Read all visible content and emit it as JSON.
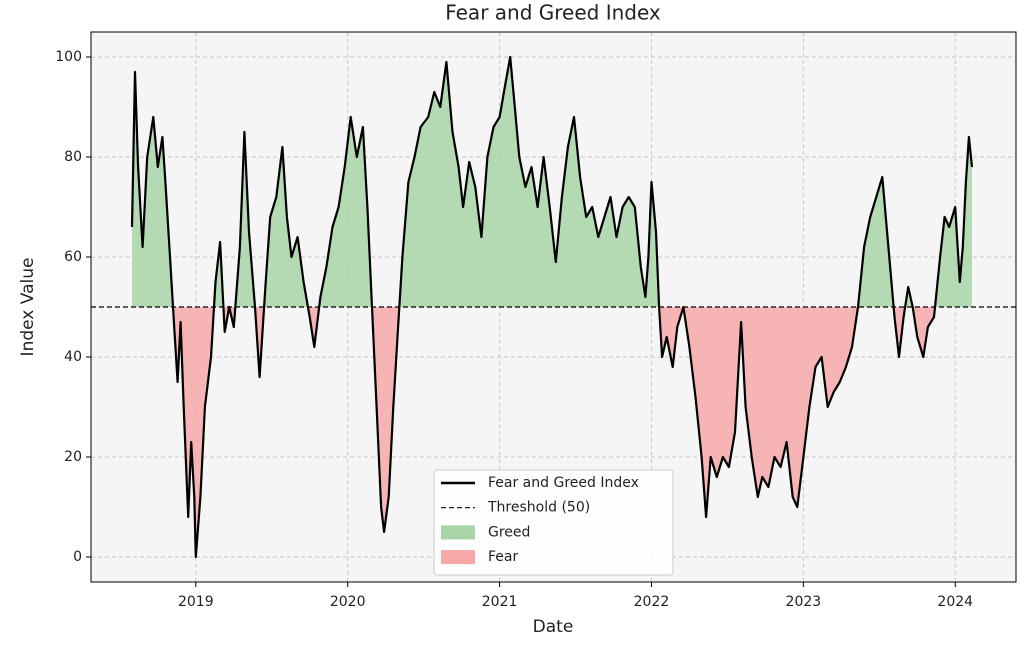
{
  "chart_data": {
    "type": "line",
    "title": "Fear and Greed Index",
    "xlabel": "Date",
    "ylabel": "Index Value",
    "x": [
      2018.58,
      2018.6,
      2018.62,
      2018.65,
      2018.68,
      2018.72,
      2018.75,
      2018.78,
      2018.8,
      2018.83,
      2018.86,
      2018.88,
      2018.9,
      2018.92,
      2018.95,
      2018.97,
      2018.99,
      2019.0,
      2019.03,
      2019.06,
      2019.1,
      2019.13,
      2019.16,
      2019.19,
      2019.22,
      2019.25,
      2019.29,
      2019.32,
      2019.35,
      2019.39,
      2019.42,
      2019.46,
      2019.49,
      2019.53,
      2019.57,
      2019.6,
      2019.63,
      2019.67,
      2019.71,
      2019.75,
      2019.78,
      2019.82,
      2019.86,
      2019.9,
      2019.94,
      2019.98,
      2020.02,
      2020.06,
      2020.1,
      2020.13,
      2020.16,
      2020.19,
      2020.22,
      2020.24,
      2020.27,
      2020.3,
      2020.33,
      2020.36,
      2020.4,
      2020.44,
      2020.48,
      2020.53,
      2020.57,
      2020.61,
      2020.65,
      2020.69,
      2020.73,
      2020.76,
      2020.8,
      2020.84,
      2020.88,
      2020.92,
      2020.96,
      2021.0,
      2021.04,
      2021.07,
      2021.1,
      2021.13,
      2021.17,
      2021.21,
      2021.25,
      2021.29,
      2021.33,
      2021.37,
      2021.41,
      2021.45,
      2021.49,
      2021.53,
      2021.57,
      2021.61,
      2021.65,
      2021.69,
      2021.73,
      2021.77,
      2021.81,
      2021.85,
      2021.89,
      2021.93,
      2021.96,
      2021.98,
      2022.0,
      2022.03,
      2022.05,
      2022.07,
      2022.1,
      2022.14,
      2022.17,
      2022.21,
      2022.25,
      2022.29,
      2022.33,
      2022.36,
      2022.39,
      2022.43,
      2022.47,
      2022.51,
      2022.55,
      2022.59,
      2022.62,
      2022.66,
      2022.7,
      2022.73,
      2022.77,
      2022.81,
      2022.85,
      2022.89,
      2022.93,
      2022.96,
      2023.0,
      2023.04,
      2023.08,
      2023.12,
      2023.16,
      2023.2,
      2023.24,
      2023.28,
      2023.32,
      2023.36,
      2023.4,
      2023.44,
      2023.48,
      2023.52,
      2023.56,
      2023.6,
      2023.63,
      2023.66,
      2023.69,
      2023.72,
      2023.75,
      2023.79,
      2023.82,
      2023.86,
      2023.9,
      2023.93,
      2023.96,
      2024.0,
      2024.03,
      2024.05,
      2024.07,
      2024.09,
      2024.11
    ],
    "series": [
      {
        "name": "Fear and Greed Index",
        "color": "#000000",
        "values": [
          66,
          97,
          78,
          62,
          80,
          88,
          78,
          84,
          75,
          60,
          45,
          35,
          47,
          30,
          8,
          23,
          12,
          0,
          12,
          30,
          40,
          55,
          63,
          45,
          50,
          46,
          62,
          85,
          65,
          50,
          36,
          55,
          68,
          72,
          82,
          68,
          60,
          64,
          55,
          48,
          42,
          52,
          58,
          66,
          70,
          78,
          88,
          80,
          86,
          70,
          50,
          30,
          10,
          5,
          12,
          30,
          45,
          60,
          75,
          80,
          86,
          88,
          93,
          90,
          99,
          85,
          78,
          70,
          79,
          74,
          64,
          80,
          86,
          88,
          95,
          100,
          90,
          80,
          74,
          78,
          70,
          80,
          70,
          59,
          72,
          82,
          88,
          76,
          68,
          70,
          64,
          68,
          72,
          64,
          70,
          72,
          70,
          58,
          52,
          60,
          75,
          65,
          50,
          40,
          44,
          38,
          46,
          50,
          42,
          32,
          20,
          8,
          20,
          16,
          20,
          18,
          25,
          47,
          30,
          20,
          12,
          16,
          14,
          20,
          18,
          23,
          12,
          10,
          20,
          30,
          38,
          40,
          30,
          33,
          35,
          38,
          42,
          50,
          62,
          68,
          72,
          76,
          62,
          48,
          40,
          48,
          54,
          50,
          44,
          40,
          46,
          48,
          60,
          68,
          66,
          70,
          55,
          62,
          75,
          84,
          78
        ]
      }
    ],
    "threshold": {
      "value": 50,
      "label": "Threshold (50)",
      "color": "#000000"
    },
    "fill_above": {
      "name": "Greed",
      "color": "#a8d5a8"
    },
    "fill_below": {
      "name": "Fear",
      "color": "#f7a8a8"
    },
    "xlim": [
      2018.31,
      2024.4
    ],
    "xticks": [
      2019,
      2020,
      2021,
      2022,
      2023,
      2024
    ],
    "ylim": [
      -5,
      105
    ],
    "yticks": [
      0,
      20,
      40,
      60,
      80,
      100
    ],
    "grid": true,
    "legend": "lower center"
  }
}
